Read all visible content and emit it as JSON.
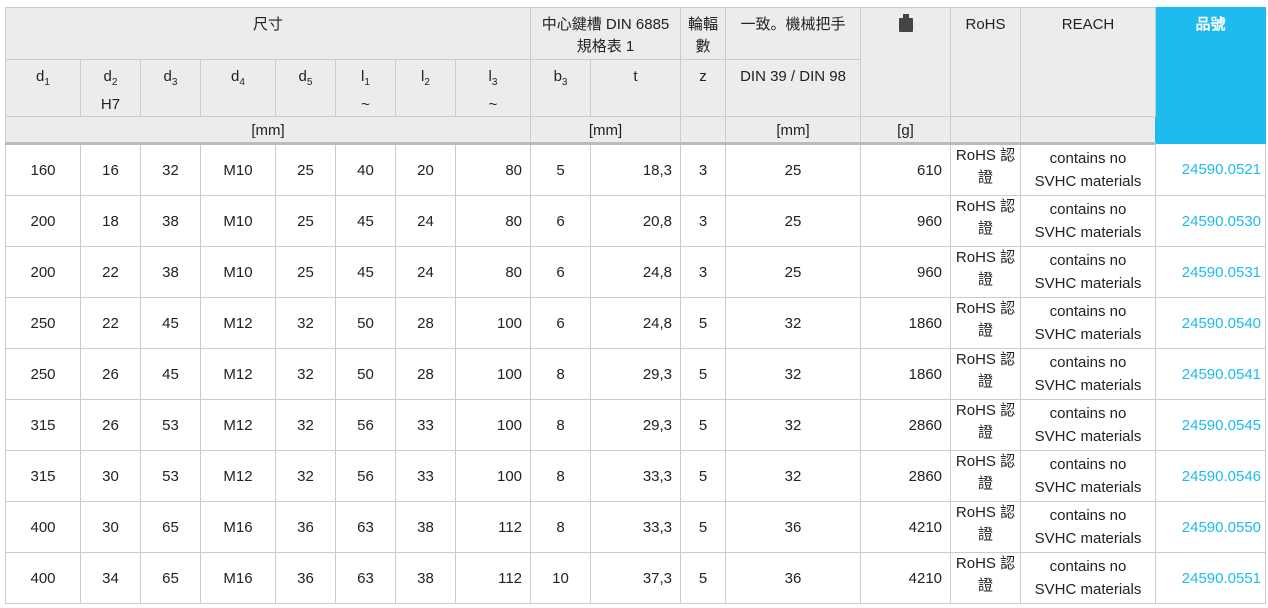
{
  "header": {
    "group_dimensions": "尺寸",
    "group_keyway": "中心鍵槽 DIN 6885 規格表 1",
    "spokes": "輪輻數",
    "handle": "一致。機械把手",
    "weight_icon": "weight-icon",
    "rohs": "RoHS",
    "reach": "REACH",
    "part_no": "品號",
    "cols": {
      "d1": "d",
      "d2": "d",
      "d2_sub": "H7",
      "d3": "d",
      "d4": "d",
      "d5": "d",
      "l1": "l",
      "l1_sub": "~",
      "l2": "l",
      "l3": "l",
      "l3_sub": "~",
      "b3": "b",
      "t": "t",
      "z": "z",
      "din": "DIN 39 / DIN 98"
    },
    "subs": {
      "1": "1",
      "2": "2",
      "3": "3",
      "4": "4",
      "5": "5"
    },
    "units": {
      "dims": "[mm]",
      "keyway": "[mm]",
      "handle": "[mm]",
      "weight": "[g]"
    }
  },
  "accent": "#1ebbee",
  "rows": [
    [
      "160",
      "16",
      "32",
      "M10",
      "25",
      "40",
      "20",
      "80",
      "5",
      "18,3",
      "3",
      "25",
      "610",
      "RoHS 認證",
      "contains no SVHC materials",
      "24590.0521"
    ],
    [
      "200",
      "18",
      "38",
      "M10",
      "25",
      "45",
      "24",
      "80",
      "6",
      "20,8",
      "3",
      "25",
      "960",
      "RoHS 認證",
      "contains no SVHC materials",
      "24590.0530"
    ],
    [
      "200",
      "22",
      "38",
      "M10",
      "25",
      "45",
      "24",
      "80",
      "6",
      "24,8",
      "3",
      "25",
      "960",
      "RoHS 認證",
      "contains no SVHC materials",
      "24590.0531"
    ],
    [
      "250",
      "22",
      "45",
      "M12",
      "32",
      "50",
      "28",
      "100",
      "6",
      "24,8",
      "5",
      "32",
      "1860",
      "RoHS 認證",
      "contains no SVHC materials",
      "24590.0540"
    ],
    [
      "250",
      "26",
      "45",
      "M12",
      "32",
      "50",
      "28",
      "100",
      "8",
      "29,3",
      "5",
      "32",
      "1860",
      "RoHS 認證",
      "contains no SVHC materials",
      "24590.0541"
    ],
    [
      "315",
      "26",
      "53",
      "M12",
      "32",
      "56",
      "33",
      "100",
      "8",
      "29,3",
      "5",
      "32",
      "2860",
      "RoHS 認證",
      "contains no SVHC materials",
      "24590.0545"
    ],
    [
      "315",
      "30",
      "53",
      "M12",
      "32",
      "56",
      "33",
      "100",
      "8",
      "33,3",
      "5",
      "32",
      "2860",
      "RoHS 認證",
      "contains no SVHC materials",
      "24590.0546"
    ],
    [
      "400",
      "30",
      "65",
      "M16",
      "36",
      "63",
      "38",
      "112",
      "8",
      "33,3",
      "5",
      "36",
      "4210",
      "RoHS 認證",
      "contains no SVHC materials",
      "24590.0550"
    ],
    [
      "400",
      "34",
      "65",
      "M16",
      "36",
      "63",
      "38",
      "112",
      "10",
      "37,3",
      "5",
      "36",
      "4210",
      "RoHS 認證",
      "contains no SVHC materials",
      "24590.0551"
    ]
  ]
}
